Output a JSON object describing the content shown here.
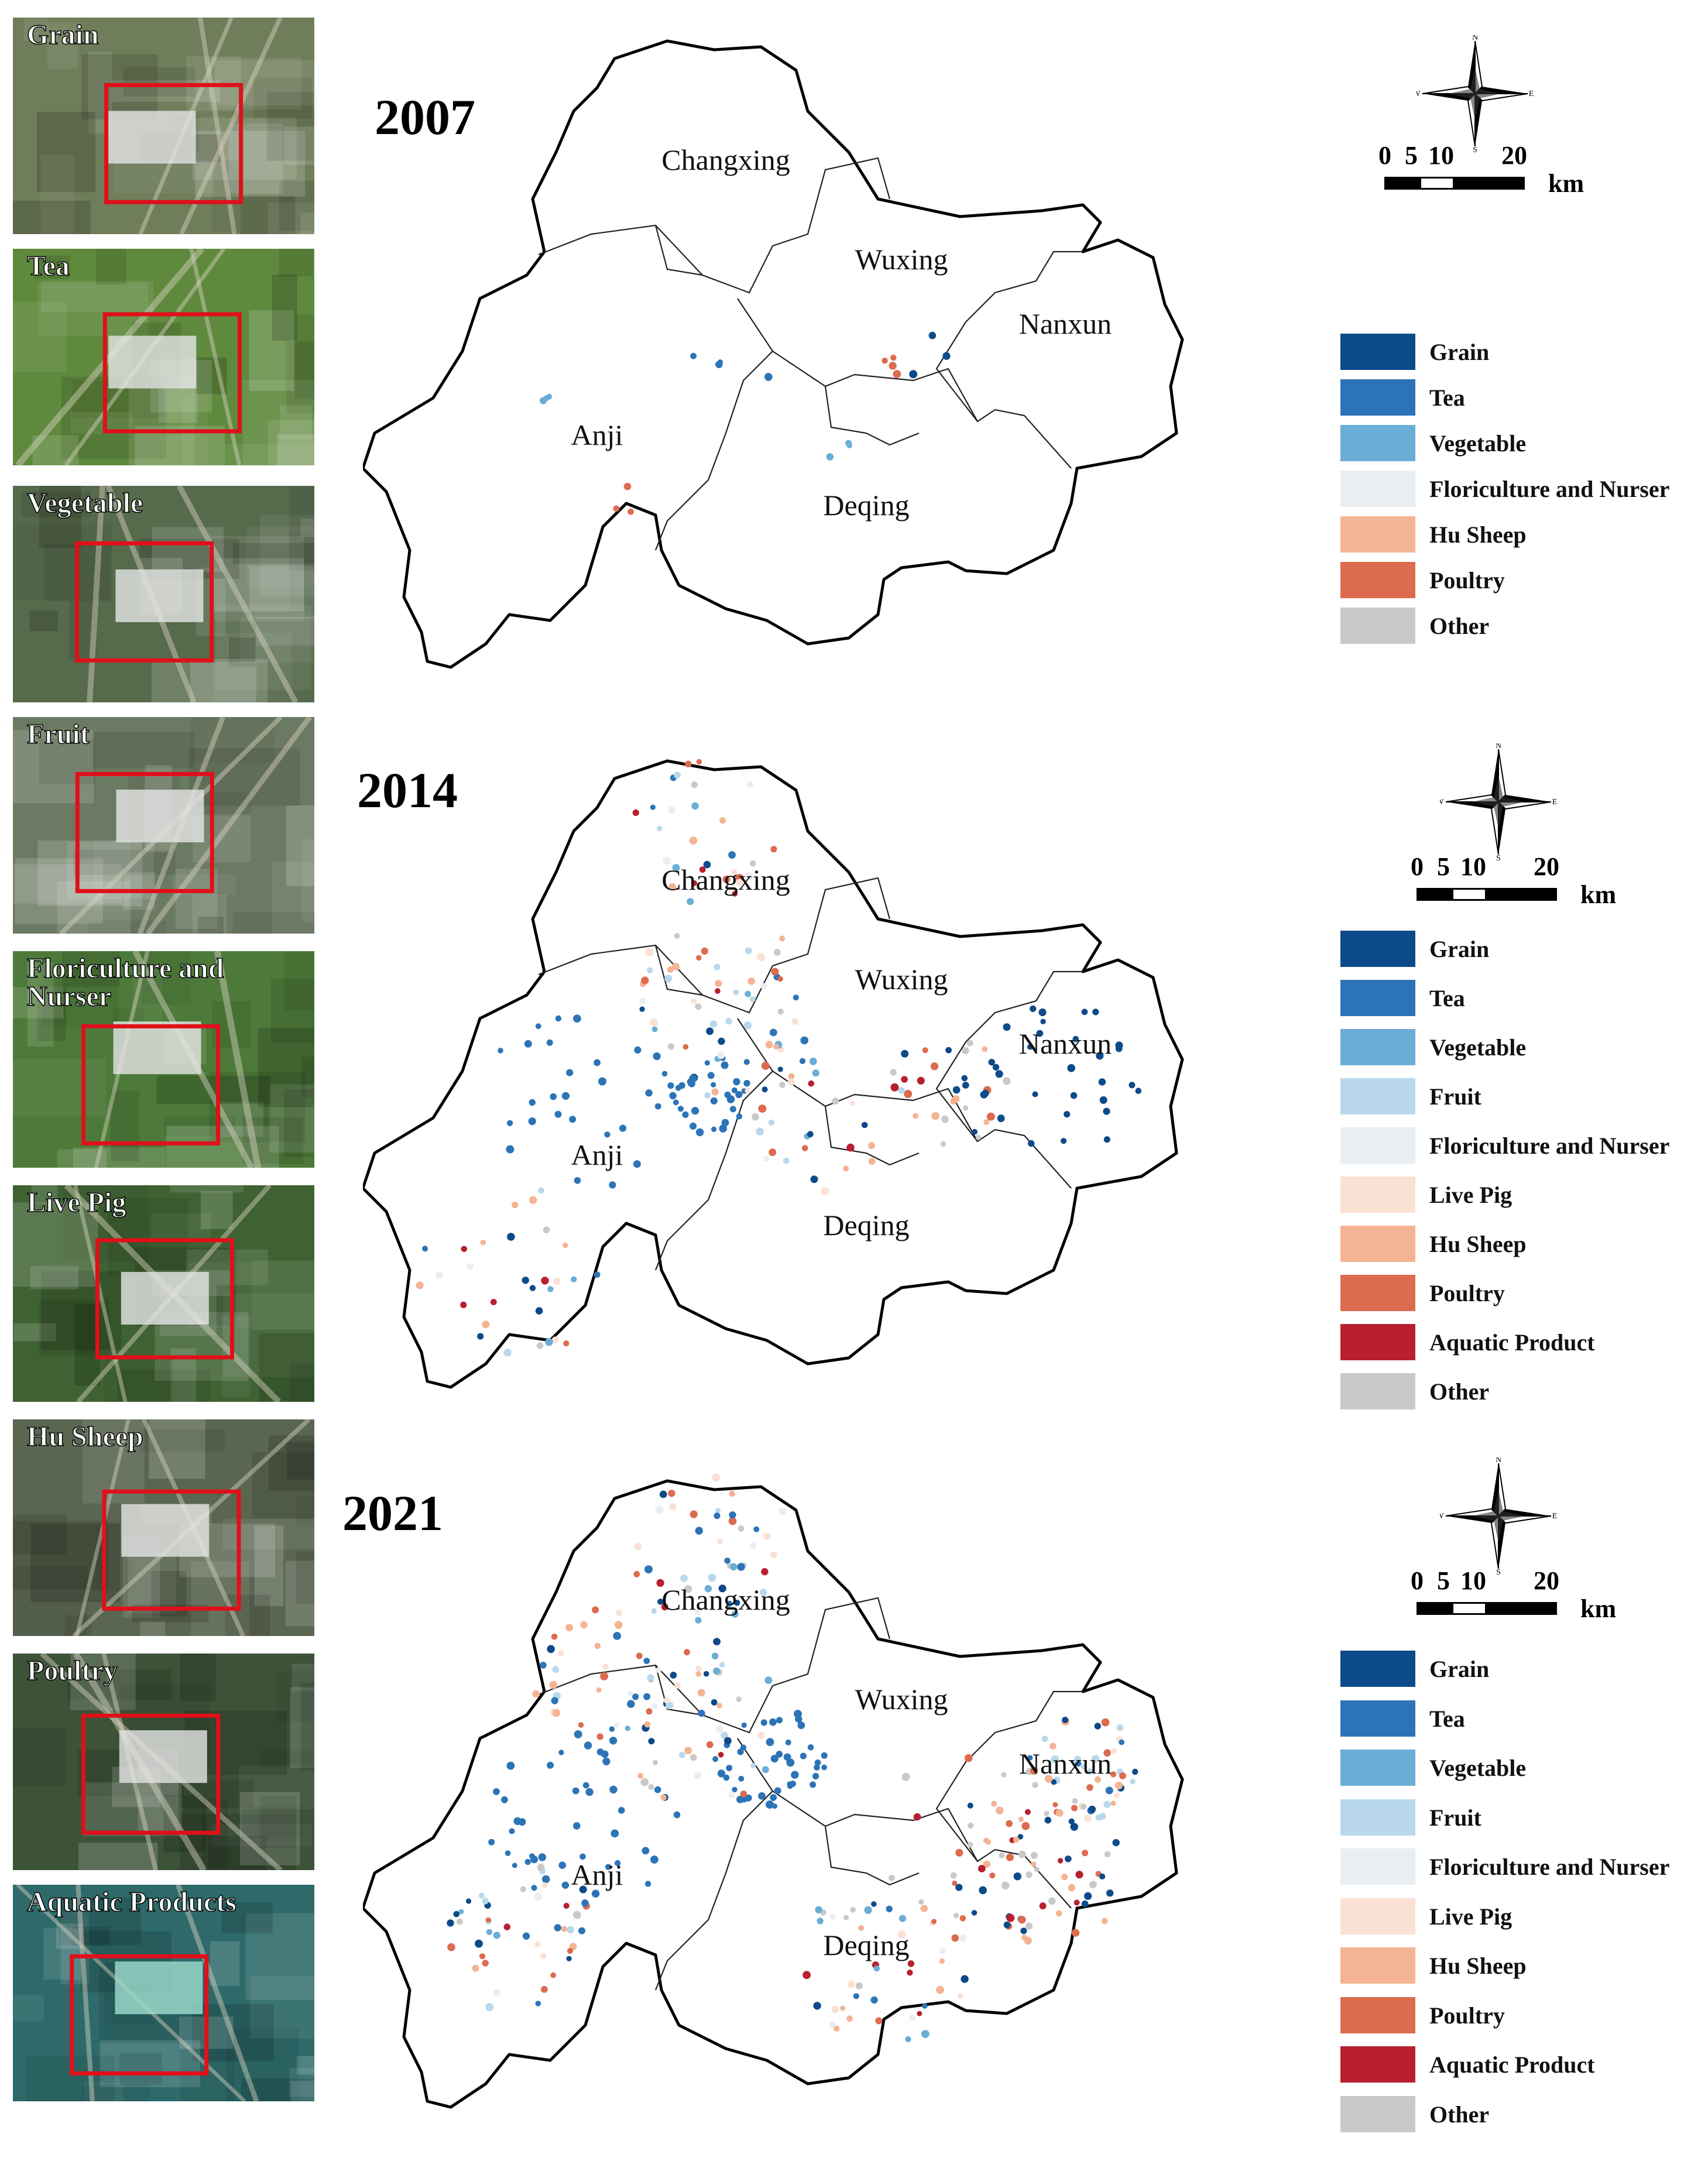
{
  "thumbnails": [
    {
      "label": "Grain",
      "bg": "#6f7d5a"
    },
    {
      "label": "Tea",
      "bg": "#5f8a3e"
    },
    {
      "label": "Vegetable",
      "bg": "#566a4c"
    },
    {
      "label": "Fruit",
      "bg": "#6b7a62"
    },
    {
      "label": "Floriculture and\nNurser",
      "bg": "#4d7a3a"
    },
    {
      "label": "Live Pig",
      "bg": "#3f6233"
    },
    {
      "label": "Hu Sheep",
      "bg": "#5a6650"
    },
    {
      "label": "Poultry",
      "bg": "#3c5338"
    },
    {
      "label": "Aquatic Products",
      "bg": "#2e6a6a"
    }
  ],
  "maps": [
    {
      "year": "2007",
      "regions": [
        "Changxing",
        "Wuxing",
        "Nanxun",
        "Anji",
        "Deqing"
      ],
      "scale": {
        "ticks": [
          "0",
          "5",
          "10",
          "20"
        ],
        "unit": "km"
      },
      "compass": {
        "n": "N",
        "s": "S",
        "e": "E",
        "w": "W"
      },
      "legend": [
        {
          "label": "Grain",
          "color": "#0d4a8a"
        },
        {
          "label": "Tea",
          "color": "#2c74b7"
        },
        {
          "label": "Vegetable",
          "color": "#6aaed6"
        },
        {
          "label": "Floriculture and Nurser",
          "color": "#e8eef2"
        },
        {
          "label": "Hu Sheep",
          "color": "#f4b493"
        },
        {
          "label": "Poultry",
          "color": "#dd6b4f"
        },
        {
          "label": "Other",
          "color": "#c9c9c9"
        }
      ]
    },
    {
      "year": "2014",
      "regions": [
        "Changxing",
        "Wuxing",
        "Nanxun",
        "Anji",
        "Deqing"
      ],
      "scale": {
        "ticks": [
          "0",
          "5",
          "10",
          "20"
        ],
        "unit": "km"
      },
      "compass": {
        "n": "N",
        "s": "S",
        "e": "E",
        "w": "W"
      },
      "legend": [
        {
          "label": "Grain",
          "color": "#0d4a8a"
        },
        {
          "label": "Tea",
          "color": "#2c74b7"
        },
        {
          "label": "Vegetable",
          "color": "#6aaed6"
        },
        {
          "label": "Fruit",
          "color": "#b9d8ec"
        },
        {
          "label": "Floriculture and Nurser",
          "color": "#e8eef2"
        },
        {
          "label": "Live Pig",
          "color": "#fbe0d4"
        },
        {
          "label": "Hu Sheep",
          "color": "#f4b493"
        },
        {
          "label": "Poultry",
          "color": "#dd6b4f"
        },
        {
          "label": "Aquatic Product",
          "color": "#b8202f"
        },
        {
          "label": "Other",
          "color": "#c9c9c9"
        }
      ]
    },
    {
      "year": "2021",
      "regions": [
        "Changxing",
        "Wuxing",
        "Nanxun",
        "Anji",
        "Deqing"
      ],
      "scale": {
        "ticks": [
          "0",
          "5",
          "10",
          "20"
        ],
        "unit": "km"
      },
      "compass": {
        "n": "N",
        "s": "S",
        "e": "E",
        "w": "W"
      },
      "legend": [
        {
          "label": "Grain",
          "color": "#0d4a8a"
        },
        {
          "label": "Tea",
          "color": "#2c74b7"
        },
        {
          "label": "Vegetable",
          "color": "#6aaed6"
        },
        {
          "label": "Fruit",
          "color": "#b9d8ec"
        },
        {
          "label": "Floriculture and Nurser",
          "color": "#e8eef2"
        },
        {
          "label": "Live Pig",
          "color": "#fbe0d4"
        },
        {
          "label": "Hu Sheep",
          "color": "#f4b493"
        },
        {
          "label": "Poultry",
          "color": "#dd6b4f"
        },
        {
          "label": "Aquatic Product",
          "color": "#b8202f"
        },
        {
          "label": "Other",
          "color": "#c9c9c9"
        }
      ]
    }
  ]
}
